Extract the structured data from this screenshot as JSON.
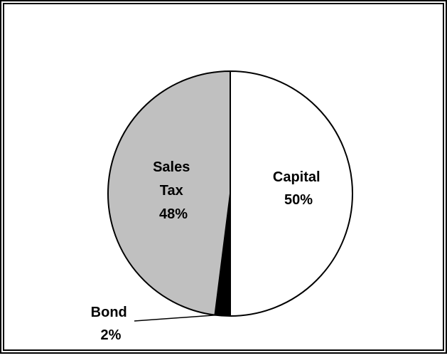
{
  "chart_data": {
    "type": "pie",
    "slices": [
      {
        "name": "Capital",
        "value": 50,
        "percent_label": "50%",
        "color": "#ffffff"
      },
      {
        "name": "Bond",
        "value": 2,
        "percent_label": "2%",
        "color": "#000000"
      },
      {
        "name": "Sales Tax",
        "value": 48,
        "percent_label": "48%",
        "color": "#c0c0c0"
      }
    ],
    "start": "12 o'clock",
    "direction": "clockwise",
    "outline_color": "#000000",
    "legend": "none",
    "labels": {
      "capital": {
        "line1": "Capital",
        "line2": "50%"
      },
      "sales_tax": {
        "line1": "Sales",
        "line2": "Tax",
        "line3": "48%"
      },
      "bond": {
        "line1": "Bond",
        "line2": "2%"
      }
    }
  }
}
